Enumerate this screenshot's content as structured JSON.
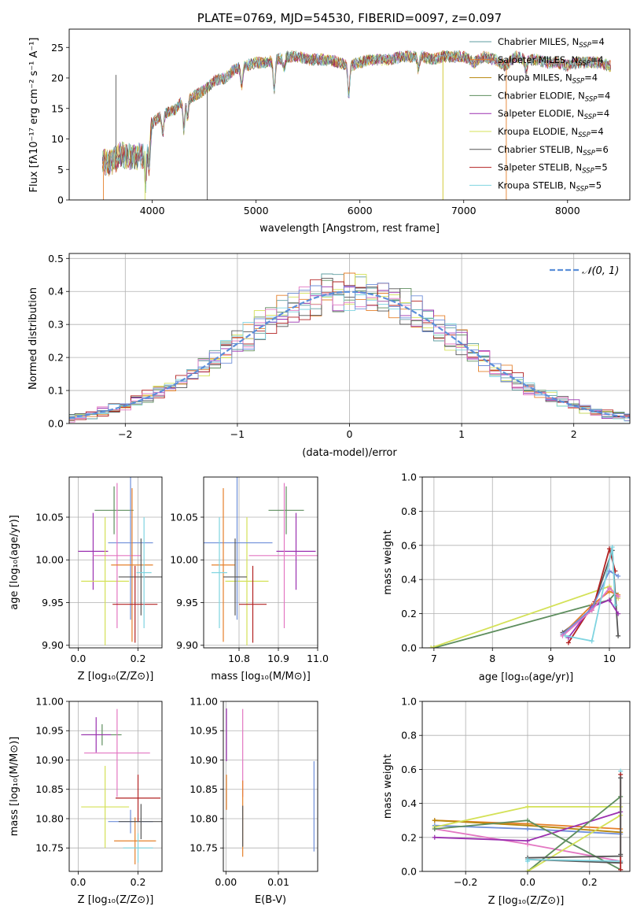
{
  "figure_title": "PLATE=0769, MJD=54530, FIBERID=0097, z=0.097",
  "chart_data": [
    {
      "id": "spectrum",
      "type": "line",
      "title": "PLATE=0769, MJD=54530, FIBERID=0097, z=0.097",
      "xlabel": "wavelength [Angstrom, rest frame]",
      "ylabel": "Flux [fλ 10⁻¹⁷ erg cm⁻² s⁻¹ A⁻¹]",
      "xlim": [
        3200,
        8600
      ],
      "ylim": [
        0,
        28
      ],
      "xticks": [
        4000,
        5000,
        6000,
        7000,
        8000
      ],
      "yticks": [
        0,
        5,
        10,
        15,
        20,
        25
      ],
      "grid": false,
      "legend_position": "upper-right",
      "continuum": {
        "x": [
          3500,
          3600,
          3700,
          3800,
          3900,
          3950,
          4000,
          4100,
          4200,
          4300,
          4400,
          4500,
          4600,
          4700,
          4800,
          4900,
          5000,
          5100,
          5200,
          5300,
          5400,
          5500,
          5600,
          5700,
          5800,
          5900,
          6000,
          6100,
          6200,
          6300,
          6400,
          6500,
          6600,
          6700,
          6800,
          6900,
          7000,
          7100,
          7200,
          7300,
          7400,
          7500,
          7600,
          7700,
          7800,
          7900,
          8000,
          8100,
          8200,
          8300,
          8400
        ],
        "y": [
          6.5,
          6.0,
          7.5,
          7.0,
          7.2,
          8.5,
          12.5,
          14.0,
          14.5,
          16.5,
          17.0,
          18.0,
          19.5,
          20.0,
          21.5,
          22.0,
          22.5,
          22.5,
          23.0,
          23.5,
          23.5,
          23.0,
          23.0,
          23.0,
          22.5,
          22.0,
          22.5,
          23.0,
          23.0,
          23.0,
          23.5,
          23.5,
          23.5,
          23.0,
          23.5,
          23.5,
          23.5,
          22.5,
          23.5,
          23.0,
          22.0,
          23.5,
          23.0,
          23.0,
          22.5,
          22.5,
          22.0,
          22.5,
          22.5,
          22.5,
          22.0
        ]
      },
      "series": [
        {
          "name": "Chabrier MILES, N",
          "sub": "SSP",
          "suffix": "=4",
          "color": "#5f9ea0"
        },
        {
          "name": "Salpeter MILES, N",
          "sub": "SSP",
          "suffix": "=4",
          "color": "#e5802b"
        },
        {
          "name": "Kroupa MILES, N",
          "sub": "SSP",
          "suffix": "=4",
          "color": "#b8860b"
        },
        {
          "name": "Chabrier ELODIE, N",
          "sub": "SSP",
          "suffix": "=4",
          "color": "#5e8e5e"
        },
        {
          "name": "Salpeter ELODIE, N",
          "sub": "SSP",
          "suffix": "=4",
          "color": "#9b30b0"
        },
        {
          "name": "Kroupa ELODIE, N",
          "sub": "SSP",
          "suffix": "=4",
          "color": "#d4e157"
        },
        {
          "name": "Chabrier STELIB, N",
          "sub": "SSP",
          "suffix": "=6",
          "color": "#555555"
        },
        {
          "name": "Salpeter STELIB, N",
          "sub": "SSP",
          "suffix": "=5",
          "color": "#b22222"
        },
        {
          "name": "Kroupa STELIB, N",
          "sub": "SSP",
          "suffix": "=5",
          "color": "#7fd4e0"
        }
      ]
    },
    {
      "id": "residuals",
      "type": "line",
      "xlabel": "(data-model)/error",
      "ylabel": "Normed distribution",
      "xlim": [
        -2.5,
        2.5
      ],
      "ylim": [
        0,
        0.515
      ],
      "xticks": [
        -2,
        -1,
        0,
        1,
        2
      ],
      "xtick_labels": [
        "−2",
        "−1",
        "0",
        "1",
        "2"
      ],
      "yticks": [
        0.0,
        0.1,
        0.2,
        0.3,
        0.4,
        0.5
      ],
      "grid": true,
      "legend_position": "upper-right",
      "reference_curve_label": "𝒩(0, 1)",
      "reference_curve_color": "#5b8fd9",
      "histogram_colors": [
        "#5f9ea0",
        "#e5802b",
        "#5e8e5e",
        "#9b30b0",
        "#d4e157",
        "#555555",
        "#b22222",
        "#7fd4e0",
        "#e377c2",
        "#6f8fd9"
      ],
      "bin_width": 0.1
    },
    {
      "id": "age-vs-Z",
      "type": "scatter",
      "xlabel": "Z [log₁₀(Z/Z⊙)]",
      "ylabel": "age  [log₁₀(age/yr)]",
      "xlim": [
        -0.03,
        0.28
      ],
      "ylim": [
        9.897,
        10.097
      ],
      "xticks": [
        0.0,
        0.2
      ],
      "xtick_labels": [
        "0.0",
        "0.2"
      ],
      "yticks": [
        9.9,
        9.95,
        10.0,
        10.05
      ],
      "ytick_labels": [
        "9.90",
        "9.95",
        "10.00",
        "10.05"
      ],
      "grid": true,
      "points": [
        {
          "x": 0.12,
          "y": 10.058,
          "xerr": 0.065,
          "yerr": 0.028,
          "color": "#5e8e5e"
        },
        {
          "x": 0.05,
          "y": 10.01,
          "xerr": 0.05,
          "yerr": 0.045,
          "color": "#9b30b0"
        },
        {
          "x": 0.09,
          "y": 9.975,
          "xerr": 0.08,
          "yerr": 0.075,
          "color": "#d4e157"
        },
        {
          "x": 0.175,
          "y": 10.02,
          "xerr": 0.075,
          "yerr": 0.09,
          "color": "#6f8fd9"
        },
        {
          "x": 0.13,
          "y": 10.005,
          "xerr": 0.08,
          "yerr": 0.085,
          "color": "#e377c2"
        },
        {
          "x": 0.18,
          "y": 9.994,
          "xerr": 0.07,
          "yerr": 0.09,
          "color": "#e5802b"
        },
        {
          "x": 0.21,
          "y": 9.98,
          "xerr": 0.075,
          "yerr": 0.045,
          "color": "#555555"
        },
        {
          "x": 0.19,
          "y": 9.948,
          "xerr": 0.075,
          "yerr": 0.045,
          "color": "#b22222"
        },
        {
          "x": 0.22,
          "y": 9.985,
          "xerr": 0.025,
          "yerr": 0.065,
          "color": "#7fd4e0"
        }
      ]
    },
    {
      "id": "age-vs-mass",
      "type": "scatter",
      "xlabel": "mass [log₁₀(M/M⊙)]",
      "xlim": [
        10.71,
        11.0
      ],
      "ylim": [
        9.897,
        10.097
      ],
      "xticks": [
        10.8,
        10.9,
        11.0
      ],
      "xtick_labels": [
        "10.8",
        "10.9",
        "11.0"
      ],
      "yticks": [
        9.9,
        9.95,
        10.0,
        10.05
      ],
      "ytick_labels": [
        "9.90",
        "9.95",
        "10.00",
        "10.05"
      ],
      "grid": true,
      "points": [
        {
          "x": 10.92,
          "y": 10.058,
          "xerr": 0.045,
          "yerr": 0.028,
          "color": "#5e8e5e"
        },
        {
          "x": 10.945,
          "y": 10.01,
          "xerr": 0.05,
          "yerr": 0.045,
          "color": "#9b30b0"
        },
        {
          "x": 10.82,
          "y": 9.975,
          "xerr": 0.055,
          "yerr": 0.075,
          "color": "#d4e157"
        },
        {
          "x": 10.795,
          "y": 10.02,
          "xerr": 0.09,
          "yerr": 0.09,
          "color": "#6f8fd9"
        },
        {
          "x": 10.915,
          "y": 10.005,
          "xerr": 0.09,
          "yerr": 0.085,
          "color": "#e377c2"
        },
        {
          "x": 10.76,
          "y": 9.994,
          "xerr": 0.03,
          "yerr": 0.09,
          "color": "#e5802b"
        },
        {
          "x": 10.79,
          "y": 9.98,
          "xerr": 0.03,
          "yerr": 0.045,
          "color": "#555555"
        },
        {
          "x": 10.835,
          "y": 9.948,
          "xerr": 0.035,
          "yerr": 0.045,
          "color": "#b22222"
        },
        {
          "x": 10.75,
          "y": 9.985,
          "xerr": 0.02,
          "yerr": 0.065,
          "color": "#7fd4e0"
        }
      ]
    },
    {
      "id": "weight-vs-age",
      "type": "line",
      "xlabel": "age  [log₁₀(age/yr)]",
      "ylabel": "mass weight",
      "xlim": [
        6.8,
        10.35
      ],
      "ylim": [
        0,
        1.0
      ],
      "xticks": [
        7,
        8,
        9,
        10
      ],
      "yticks": [
        0.0,
        0.2,
        0.4,
        0.6,
        0.8,
        1.0
      ],
      "grid": true,
      "series": [
        {
          "color": "#5e8e5e",
          "x": [
            7.0,
            10.0,
            10.1
          ],
          "y": [
            0.0,
            0.28,
            0.32
          ]
        },
        {
          "color": "#d4e157",
          "x": [
            6.95,
            10.0,
            10.15
          ],
          "y": [
            0.0,
            0.36,
            0.29
          ]
        },
        {
          "color": "#555555",
          "x": [
            9.2,
            9.7,
            10.05,
            10.15
          ],
          "y": [
            0.09,
            0.22,
            0.57,
            0.07
          ]
        },
        {
          "color": "#b22222",
          "x": [
            9.3,
            9.75,
            10.0,
            10.1
          ],
          "y": [
            0.03,
            0.27,
            0.58,
            0.45
          ]
        },
        {
          "color": "#e5802b",
          "x": [
            9.2,
            9.7,
            10.0,
            10.15
          ],
          "y": [
            0.08,
            0.25,
            0.33,
            0.31
          ]
        },
        {
          "color": "#9b30b0",
          "x": [
            9.3,
            9.7,
            10.0,
            10.15
          ],
          "y": [
            0.06,
            0.24,
            0.28,
            0.2
          ]
        },
        {
          "color": "#6f8fd9",
          "x": [
            9.2,
            9.7,
            10.0,
            10.15
          ],
          "y": [
            0.08,
            0.23,
            0.45,
            0.42
          ]
        },
        {
          "color": "#e377c2",
          "x": [
            9.2,
            9.7,
            10.0,
            10.15
          ],
          "y": [
            0.07,
            0.22,
            0.35,
            0.3
          ]
        },
        {
          "color": "#7fd4e0",
          "x": [
            9.25,
            9.7,
            10.05,
            10.1
          ],
          "y": [
            0.07,
            0.04,
            0.59,
            0.25
          ]
        }
      ]
    },
    {
      "id": "mass-vs-Z",
      "type": "scatter",
      "xlabel": "Z [log₁₀(Z/Z⊙)]",
      "ylabel": "mass [log₁₀(M/M⊙)]",
      "xlim": [
        -0.03,
        0.28
      ],
      "ylim": [
        10.71,
        11.0
      ],
      "xticks": [
        0.0,
        0.2
      ],
      "xtick_labels": [
        "0.0",
        "0.2"
      ],
      "yticks": [
        10.75,
        10.8,
        10.85,
        10.9,
        10.95,
        11.0
      ],
      "ytick_labels": [
        "10.75",
        "10.80",
        "10.85",
        "10.90",
        "10.95",
        "11.00"
      ],
      "grid": true,
      "points": [
        {
          "x": 0.08,
          "y": 10.943,
          "xerr": 0.065,
          "yerr": 0.018,
          "color": "#5e8e5e"
        },
        {
          "x": 0.06,
          "y": 10.943,
          "xerr": 0.05,
          "yerr": 0.03,
          "color": "#9b30b0"
        },
        {
          "x": 0.09,
          "y": 10.82,
          "xerr": 0.08,
          "yerr": 0.07,
          "color": "#d4e157"
        },
        {
          "x": 0.175,
          "y": 10.795,
          "xerr": 0.075,
          "yerr": 0.02,
          "color": "#6f8fd9"
        },
        {
          "x": 0.13,
          "y": 10.912,
          "xerr": 0.11,
          "yerr": 0.075,
          "color": "#e377c2"
        },
        {
          "x": 0.19,
          "y": 10.762,
          "xerr": 0.07,
          "yerr": 0.04,
          "color": "#e5802b"
        },
        {
          "x": 0.21,
          "y": 10.795,
          "xerr": 0.075,
          "yerr": 0.03,
          "color": "#555555"
        },
        {
          "x": 0.2,
          "y": 10.835,
          "xerr": 0.075,
          "yerr": 0.04,
          "color": "#b22222"
        },
        {
          "x": 0.2,
          "y": 10.75,
          "xerr": 0.05,
          "yerr": 0.025,
          "color": "#7fd4e0"
        }
      ]
    },
    {
      "id": "mass-vs-EBV",
      "type": "scatter",
      "xlabel": "E(B-V)",
      "xlim": [
        -0.0005,
        0.0175
      ],
      "ylim": [
        10.71,
        11.0
      ],
      "xticks": [
        0.0,
        0.01
      ],
      "xtick_labels": [
        "0.00",
        "0.01"
      ],
      "yticks": [
        10.75,
        10.8,
        10.85,
        10.9,
        10.95,
        11.0
      ],
      "ytick_labels": [
        "10.75",
        "10.80",
        "10.85",
        "10.90",
        "10.95",
        "11.00"
      ],
      "grid": true,
      "points": [
        {
          "x": 0.0001,
          "y": 10.943,
          "xerr": 0.0,
          "yerr": 0.045,
          "color": "#9b30b0"
        },
        {
          "x": 0.0001,
          "y": 10.845,
          "xerr": 0.0,
          "yerr": 0.03,
          "color": "#e5802b"
        },
        {
          "x": 0.0032,
          "y": 10.912,
          "xerr": 0.0,
          "yerr": 0.075,
          "color": "#e377c2"
        },
        {
          "x": 0.0032,
          "y": 10.8,
          "xerr": 0.0,
          "yerr": 0.065,
          "color": "#e5802b"
        },
        {
          "x": 0.0032,
          "y": 10.787,
          "xerr": 0.0,
          "yerr": 0.035,
          "color": "#555555"
        },
        {
          "x": 0.0168,
          "y": 10.821,
          "xerr": 0.0,
          "yerr": 0.077,
          "color": "#6f8fd9"
        }
      ]
    },
    {
      "id": "weight-vs-Z",
      "type": "line",
      "xlabel": "Z [log₁₀(Z/Z⊙)]",
      "ylabel": "mass weight",
      "xlim": [
        -0.34,
        0.33
      ],
      "ylim": [
        0,
        1.0
      ],
      "xticks": [
        -0.2,
        0.0,
        0.2
      ],
      "xtick_labels": [
        "−0.2",
        "0.0",
        "0.2"
      ],
      "yticks": [
        0.0,
        0.2,
        0.4,
        0.6,
        0.8,
        1.0
      ],
      "grid": true,
      "series": [
        {
          "color": "#e5802b",
          "x": [
            -0.3,
            0.0,
            0.3
          ],
          "y": [
            0.3,
            0.28,
            0.25
          ]
        },
        {
          "color": "#b8860b",
          "x": [
            -0.3,
            0.0,
            0.3
          ],
          "y": [
            0.3,
            0.27,
            0.23
          ]
        },
        {
          "color": "#6f8fd9",
          "x": [
            -0.3,
            0.0,
            0.3
          ],
          "y": [
            0.27,
            0.25,
            0.22
          ]
        },
        {
          "color": "#e377c2",
          "x": [
            -0.3,
            0.0,
            0.3
          ],
          "y": [
            0.25,
            0.16,
            0.06
          ]
        },
        {
          "color": "#9b30b0",
          "x": [
            -0.3,
            0.0,
            0.3
          ],
          "y": [
            0.2,
            0.18,
            0.35
          ]
        },
        {
          "color": "#d4e157",
          "x": [
            -0.3,
            0.0,
            0.3
          ],
          "y": [
            0.26,
            0.38,
            0.38
          ]
        },
        {
          "color": "#5e8e5e",
          "x": [
            -0.3,
            0.0,
            0.3
          ],
          "y": [
            0.25,
            0.3,
            0.01
          ]
        },
        {
          "color": "#5e8e5e",
          "x": [
            0.0,
            0.3
          ],
          "y": [
            0.0,
            0.44
          ]
        },
        {
          "color": "#d4e157",
          "x": [
            0.0,
            0.3
          ],
          "y": [
            0.0,
            0.33
          ]
        },
        {
          "color": "#555555",
          "x": [
            0.0,
            0.3
          ],
          "y": [
            0.08,
            0.09
          ]
        },
        {
          "color": "#555555",
          "x": [
            0.0,
            0.3
          ],
          "y": [
            0.07,
            0.05
          ]
        },
        {
          "color": "#7fd4e0",
          "x": [
            0.0,
            0.0,
            0.3,
            0.3
          ],
          "y": [
            0.06,
            0.07,
            0.06,
            0.59
          ]
        },
        {
          "color": "#b22222",
          "x": [
            0.3,
            0.3
          ],
          "y": [
            0.01,
            0.57
          ]
        },
        {
          "color": "#555555",
          "x": [
            0.3,
            0.3
          ],
          "y": [
            0.1,
            0.55
          ]
        }
      ]
    }
  ]
}
